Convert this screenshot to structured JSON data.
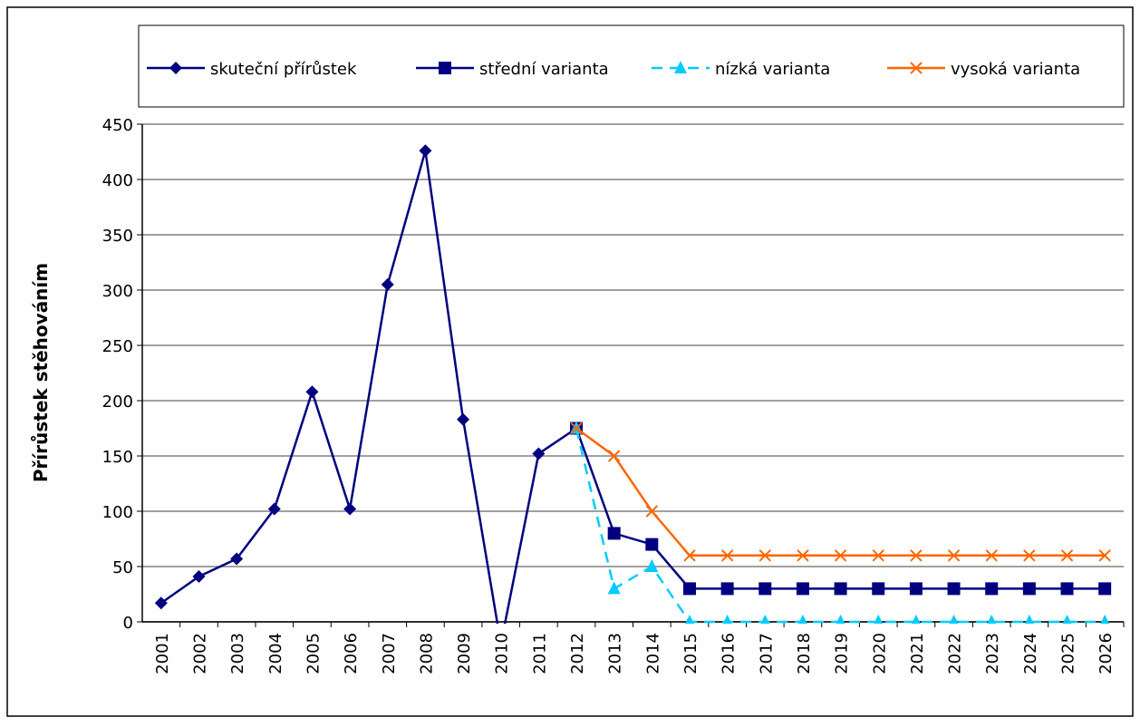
{
  "chart_data": {
    "type": "line",
    "y_label": "Přírůstek stěhováním",
    "categories": [
      "2001",
      "2002",
      "2003",
      "2004",
      "2005",
      "2006",
      "2007",
      "2008",
      "2009",
      "2010",
      "2011",
      "2012",
      "2013",
      "2014",
      "2015",
      "2016",
      "2017",
      "2018",
      "2019",
      "2020",
      "2021",
      "2022",
      "2023",
      "2024",
      "2025",
      "2026"
    ],
    "series": [
      {
        "name": "skuteční přírůstek",
        "color": "#000080",
        "marker": "diamond",
        "dash": false,
        "values": [
          17,
          41,
          57,
          102,
          208,
          102,
          305,
          426,
          183,
          -20,
          152,
          175,
          null,
          null,
          null,
          null,
          null,
          null,
          null,
          null,
          null,
          null,
          null,
          null,
          null,
          null
        ]
      },
      {
        "name": "střední varianta",
        "color": "#000080",
        "marker": "square",
        "dash": false,
        "values": [
          null,
          null,
          null,
          null,
          null,
          null,
          null,
          null,
          null,
          null,
          null,
          175,
          80,
          70,
          30,
          30,
          30,
          30,
          30,
          30,
          30,
          30,
          30,
          30,
          30,
          30
        ]
      },
      {
        "name": "nízká varianta",
        "color": "#00ccff",
        "marker": "triangle",
        "dash": true,
        "values": [
          null,
          null,
          null,
          null,
          null,
          null,
          null,
          null,
          null,
          null,
          null,
          175,
          30,
          50,
          0,
          0,
          0,
          0,
          0,
          0,
          0,
          0,
          0,
          0,
          0,
          0
        ]
      },
      {
        "name": "vysoká varianta",
        "color": "#ff6600",
        "marker": "x",
        "dash": false,
        "values": [
          null,
          null,
          null,
          null,
          null,
          null,
          null,
          null,
          null,
          null,
          null,
          175,
          150,
          100,
          60,
          60,
          60,
          60,
          60,
          60,
          60,
          60,
          60,
          60,
          60,
          60
        ]
      }
    ],
    "ylim": [
      0,
      450
    ],
    "yticks": [
      0,
      50,
      100,
      150,
      200,
      250,
      300,
      350,
      400,
      450
    ],
    "grid": true
  }
}
